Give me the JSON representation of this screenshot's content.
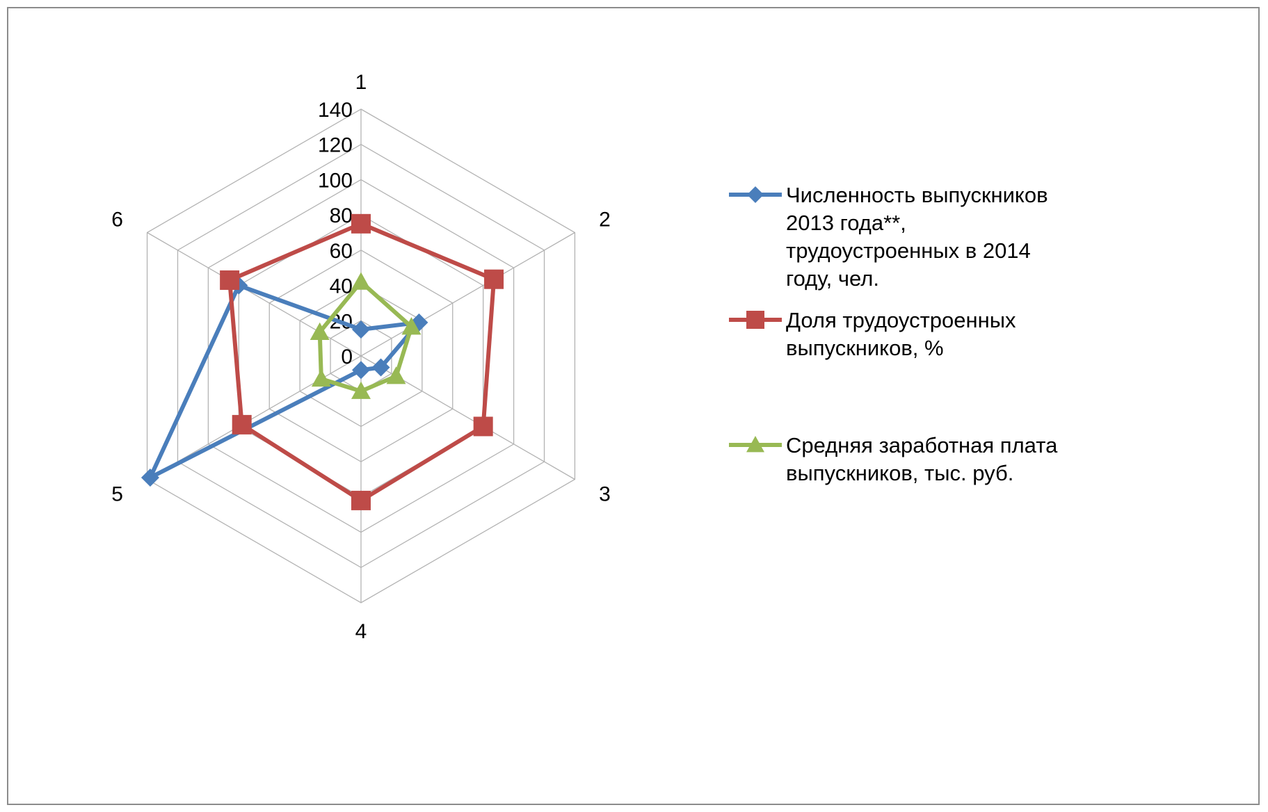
{
  "chart_data": {
    "type": "radar",
    "categories": [
      "1",
      "2",
      "3",
      "4",
      "5",
      "6"
    ],
    "axis": {
      "min": 0,
      "max": 140,
      "step": 20,
      "tick_labels": [
        "0",
        "20",
        "40",
        "60",
        "80",
        "100",
        "120",
        "140"
      ]
    },
    "grid": true,
    "legend_position": "right",
    "series": [
      {
        "name": "Численность выпускников 2013 года**, трудоустроенных в 2014 году, чел.",
        "legend_lines": [
          "Численность выпускников",
          "2013 года**,",
          "трудоустроенных в 2014",
          "году, чел."
        ],
        "color": "#4a7ebb",
        "marker": "diamond",
        "values": [
          15,
          38,
          13,
          8,
          138,
          80
        ]
      },
      {
        "name": "Доля трудоустроенных выпускников, %",
        "legend_lines": [
          "Доля трудоустроенных",
          "выпускников, %"
        ],
        "color": "#be4b48",
        "marker": "square",
        "values": [
          75,
          87,
          80,
          82,
          78,
          86
        ]
      },
      {
        "name": "Средняя заработная плата выпускников, тыс. руб.",
        "legend_lines": [
          "Средняя заработная плата",
          "выпускников, тыс. руб."
        ],
        "color": "#98b954",
        "marker": "triangle",
        "values": [
          42,
          33,
          23,
          20,
          26,
          27
        ]
      }
    ]
  }
}
